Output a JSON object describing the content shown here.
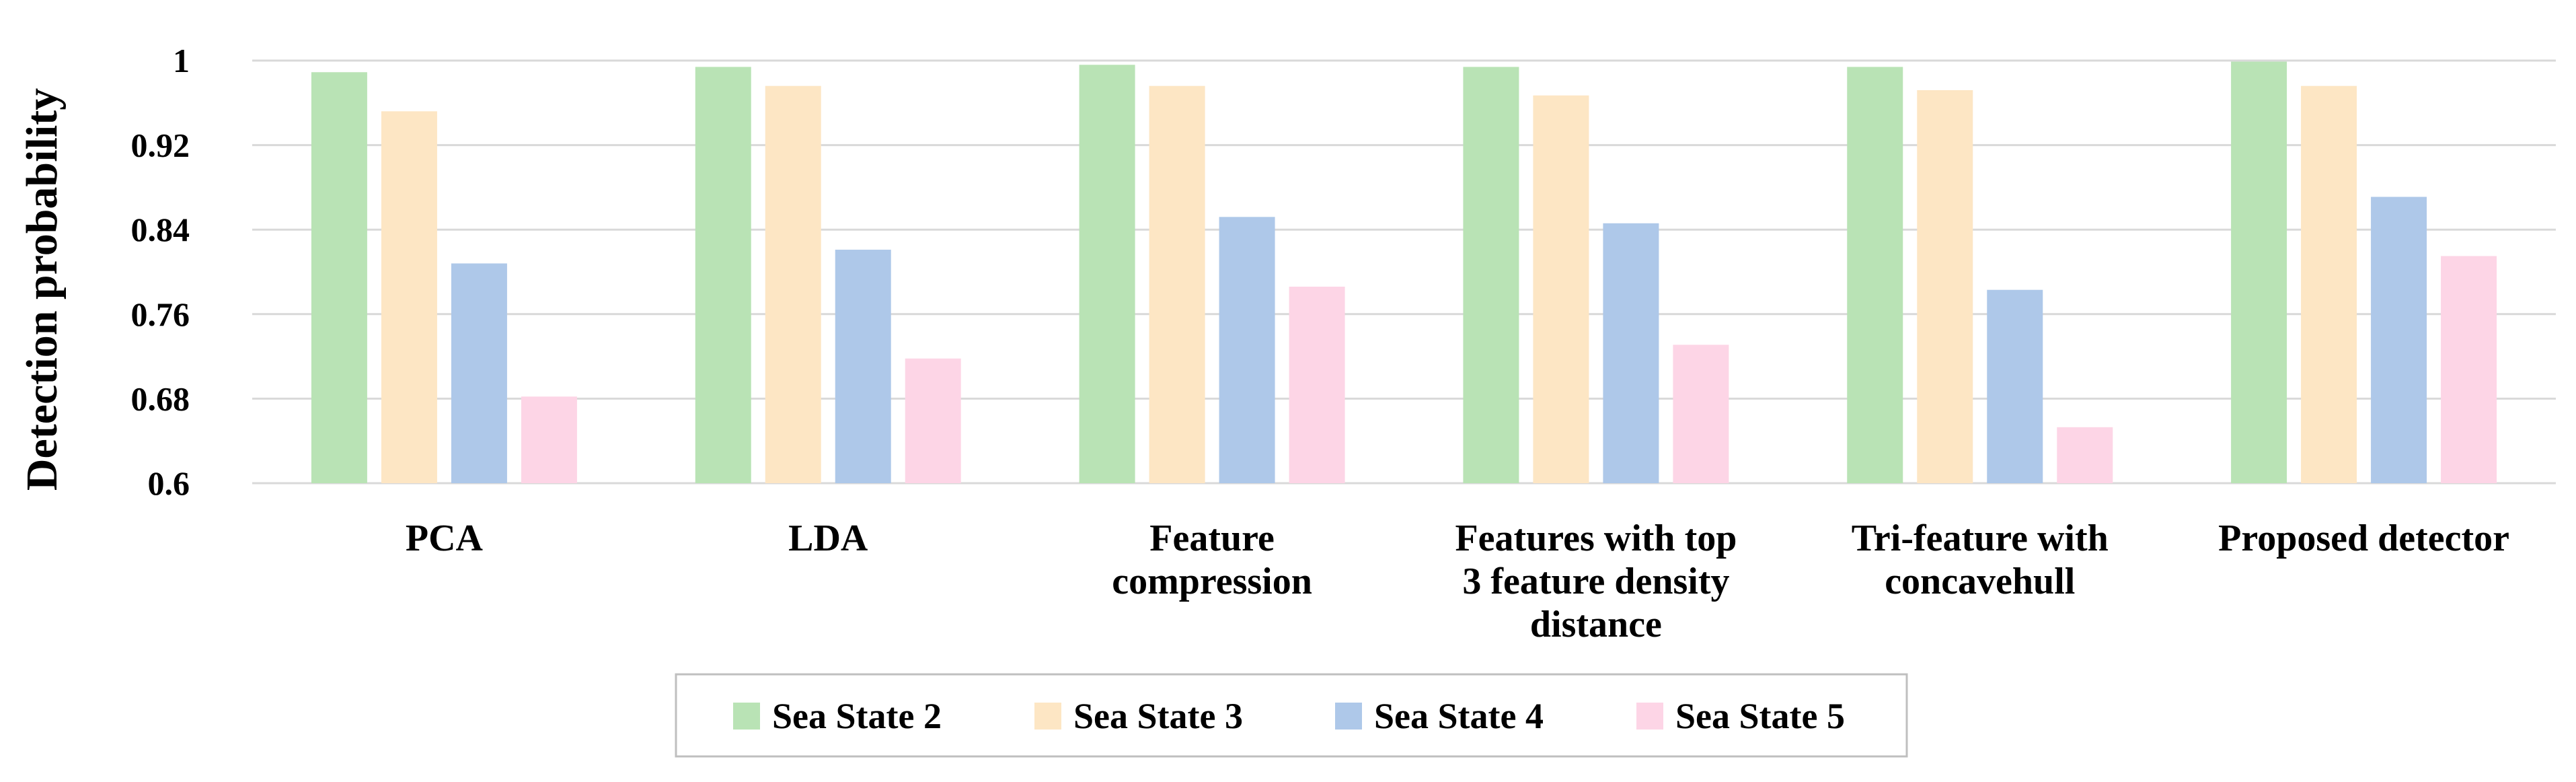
{
  "chart_data": {
    "type": "bar",
    "ylabel": "Detection probability",
    "xlabel": "",
    "ylim": [
      0.6,
      1.0
    ],
    "yticks": [
      0.6,
      0.68,
      0.76,
      0.84,
      0.92,
      1.0
    ],
    "ytick_labels": [
      "0.6",
      "0.68",
      "0.76",
      "0.84",
      "0.92",
      "1"
    ],
    "grid": true,
    "legend_position": "bottom",
    "categories": [
      [
        "PCA"
      ],
      [
        "LDA"
      ],
      [
        "Feature",
        "compression"
      ],
      [
        "Features with top",
        "3 feature density",
        "distance"
      ],
      [
        "Tri-feature with",
        "concavehull"
      ],
      [
        "Proposed detector"
      ]
    ],
    "series": [
      {
        "name": "Sea State 2",
        "color": "#b9e3b5",
        "values": [
          0.989,
          0.994,
          0.996,
          0.994,
          0.994,
          0.999
        ]
      },
      {
        "name": "Sea State 3",
        "color": "#fde6c4",
        "values": [
          0.952,
          0.976,
          0.976,
          0.967,
          0.972,
          0.976
        ]
      },
      {
        "name": "Sea State 4",
        "color": "#aec8e9",
        "values": [
          0.808,
          0.821,
          0.852,
          0.846,
          0.783,
          0.871
        ]
      },
      {
        "name": "Sea State 5",
        "color": "#fdd5e6",
        "values": [
          0.682,
          0.718,
          0.786,
          0.731,
          0.653,
          0.815
        ]
      }
    ]
  }
}
